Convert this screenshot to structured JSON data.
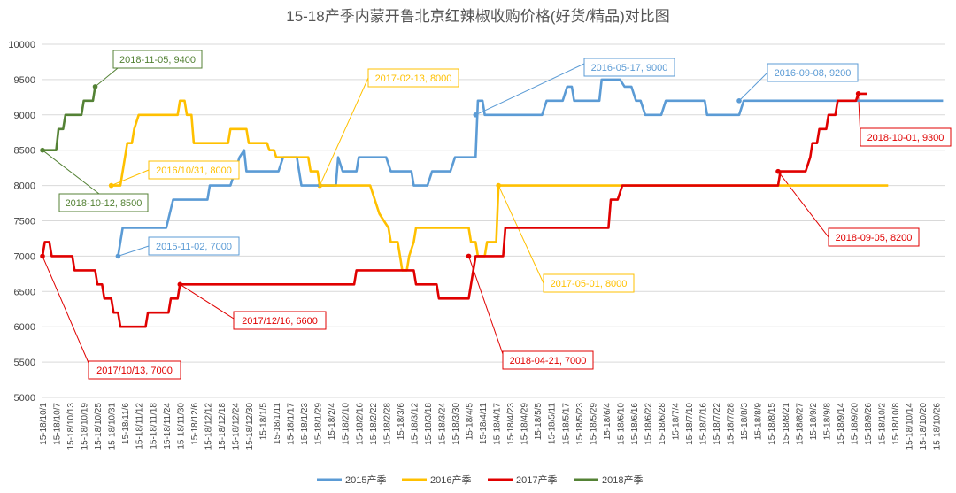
{
  "chart_data": {
    "type": "line",
    "title": "15-18产季内蒙开鲁北京红辣椒收购价格(好货/精品)对比图",
    "ylim": [
      5000,
      10000
    ],
    "yticks": [
      "5000",
      "5500",
      "6000",
      "6500",
      "7000",
      "7500",
      "8000",
      "8500",
      "9000",
      "9500",
      "10000"
    ],
    "xlabels": [
      "15-18/10/1",
      "15-18/10/7",
      "15-18/10/13",
      "15-18/10/19",
      "15-18/10/25",
      "15-18/10/31",
      "15-18/11/6",
      "15-18/11/12",
      "15-18/11/18",
      "15-18/11/24",
      "15-18/11/30",
      "15-18/12/6",
      "15-18/12/12",
      "15-18/12/18",
      "15-18/12/24",
      "15-18/12/30",
      "15-18/1/5",
      "15-18/1/11",
      "15-18/1/17",
      "15-18/1/23",
      "15-18/1/29",
      "15-18/2/4",
      "15-18/2/10",
      "15-18/2/16",
      "15-18/2/22",
      "15-18/2/28",
      "15-18/3/6",
      "15-18/3/12",
      "15-18/3/18",
      "15-18/3/24",
      "15-18/3/30",
      "15-18/4/5",
      "15-18/4/11",
      "15-18/4/17",
      "15-18/4/23",
      "15-18/4/29",
      "15-18/5/5",
      "15-18/5/11",
      "15-18/5/17",
      "15-18/5/23",
      "15-18/5/29",
      "15-18/6/4",
      "15-18/6/10",
      "15-18/6/16",
      "15-18/6/22",
      "15-18/6/28",
      "15-18/7/4",
      "15-18/7/10",
      "15-18/7/16",
      "15-18/7/22",
      "15-18/7/28",
      "15-18/8/3",
      "15-18/8/9",
      "15-18/8/15",
      "15-18/8/21",
      "15-18/8/27",
      "15-18/9/2",
      "15-18/9/8",
      "15-18/9/14",
      "15-18/9/20",
      "15-18/9/26",
      "15-18/10/2",
      "15-18/10/8",
      "15-18/10/14",
      "15-18/10/20",
      "15-18/10/26"
    ],
    "series": [
      {
        "name": "2015产季",
        "color": "#5B9BD5",
        "points": [
          [
            33,
            7000
          ],
          [
            34,
            7200
          ],
          [
            35,
            7400
          ],
          [
            54,
            7400
          ],
          [
            57,
            7800
          ],
          [
            72,
            7800
          ],
          [
            73,
            8000
          ],
          [
            82,
            8000
          ],
          [
            84,
            8200
          ],
          [
            86,
            8400
          ],
          [
            88,
            8500
          ],
          [
            89,
            8200
          ],
          [
            103,
            8200
          ],
          [
            105,
            8400
          ],
          [
            111,
            8400
          ],
          [
            113,
            8000
          ],
          [
            128,
            8000
          ],
          [
            129,
            8400
          ],
          [
            131,
            8200
          ],
          [
            137,
            8200
          ],
          [
            138,
            8400
          ],
          [
            150,
            8400
          ],
          [
            152,
            8200
          ],
          [
            161,
            8200
          ],
          [
            162,
            8000
          ],
          [
            168,
            8000
          ],
          [
            170,
            8200
          ],
          [
            178,
            8200
          ],
          [
            180,
            8400
          ],
          [
            189,
            8400
          ],
          [
            190,
            9200
          ],
          [
            192,
            9200
          ],
          [
            193,
            9000
          ],
          [
            218,
            9000
          ],
          [
            220,
            9200
          ],
          [
            227,
            9200
          ],
          [
            229,
            9400
          ],
          [
            231,
            9400
          ],
          [
            232,
            9200
          ],
          [
            243,
            9200
          ],
          [
            244,
            9500
          ],
          [
            252,
            9500
          ],
          [
            254,
            9400
          ],
          [
            257,
            9400
          ],
          [
            259,
            9200
          ],
          [
            261,
            9200
          ],
          [
            263,
            9000
          ],
          [
            270,
            9000
          ],
          [
            272,
            9200
          ],
          [
            289,
            9200
          ],
          [
            290,
            9000
          ],
          [
            304,
            9000
          ],
          [
            306,
            9200
          ],
          [
            393,
            9200
          ]
        ]
      },
      {
        "name": "2016产季",
        "color": "#FFC000",
        "points": [
          [
            30,
            8000
          ],
          [
            34,
            8000
          ],
          [
            36,
            8400
          ],
          [
            37,
            8600
          ],
          [
            39,
            8600
          ],
          [
            40,
            8800
          ],
          [
            42,
            9000
          ],
          [
            59,
            9000
          ],
          [
            60,
            9200
          ],
          [
            62,
            9200
          ],
          [
            63,
            9000
          ],
          [
            65,
            9000
          ],
          [
            66,
            8600
          ],
          [
            81,
            8600
          ],
          [
            82,
            8800
          ],
          [
            89,
            8800
          ],
          [
            90,
            8600
          ],
          [
            98,
            8600
          ],
          [
            99,
            8500
          ],
          [
            101,
            8500
          ],
          [
            102,
            8400
          ],
          [
            116,
            8400
          ],
          [
            117,
            8200
          ],
          [
            120,
            8200
          ],
          [
            121,
            8000
          ],
          [
            143,
            8000
          ],
          [
            145,
            7800
          ],
          [
            147,
            7600
          ],
          [
            149,
            7500
          ],
          [
            151,
            7400
          ],
          [
            152,
            7200
          ],
          [
            155,
            7200
          ],
          [
            156,
            7000
          ],
          [
            157,
            6800
          ],
          [
            159,
            6800
          ],
          [
            160,
            7000
          ],
          [
            162,
            7200
          ],
          [
            163,
            7400
          ],
          [
            186,
            7400
          ],
          [
            187,
            7200
          ],
          [
            189,
            7200
          ],
          [
            190,
            7000
          ],
          [
            193,
            7000
          ],
          [
            194,
            7200
          ],
          [
            198,
            7200
          ],
          [
            199,
            8000
          ],
          [
            369,
            8000
          ]
        ]
      },
      {
        "name": "2017产季",
        "color": "#E00000",
        "points": [
          [
            0,
            7000
          ],
          [
            1,
            7200
          ],
          [
            3,
            7200
          ],
          [
            4,
            7000
          ],
          [
            13,
            7000
          ],
          [
            14,
            6800
          ],
          [
            23,
            6800
          ],
          [
            24,
            6600
          ],
          [
            26,
            6600
          ],
          [
            27,
            6400
          ],
          [
            30,
            6400
          ],
          [
            31,
            6200
          ],
          [
            33,
            6200
          ],
          [
            34,
            6000
          ],
          [
            45,
            6000
          ],
          [
            46,
            6200
          ],
          [
            55,
            6200
          ],
          [
            56,
            6400
          ],
          [
            59,
            6400
          ],
          [
            60,
            6600
          ],
          [
            136,
            6600
          ],
          [
            137,
            6800
          ],
          [
            162,
            6800
          ],
          [
            163,
            6600
          ],
          [
            172,
            6600
          ],
          [
            173,
            6400
          ],
          [
            186,
            6400
          ],
          [
            189,
            7000
          ],
          [
            201,
            7000
          ],
          [
            202,
            7400
          ],
          [
            247,
            7400
          ],
          [
            248,
            7800
          ],
          [
            251,
            7800
          ],
          [
            253,
            8000
          ],
          [
            321,
            8000
          ],
          [
            322,
            8200
          ],
          [
            333,
            8200
          ],
          [
            335,
            8400
          ],
          [
            336,
            8600
          ],
          [
            338,
            8600
          ],
          [
            339,
            8800
          ],
          [
            342,
            8800
          ],
          [
            343,
            9000
          ],
          [
            346,
            9000
          ],
          [
            347,
            9200
          ],
          [
            355,
            9200
          ],
          [
            356,
            9300
          ],
          [
            360,
            9300
          ]
        ]
      },
      {
        "name": "2018产季",
        "color": "#548235",
        "points": [
          [
            0,
            8500
          ],
          [
            6,
            8500
          ],
          [
            7,
            8800
          ],
          [
            9,
            8800
          ],
          [
            10,
            9000
          ],
          [
            17,
            9000
          ],
          [
            18,
            9200
          ],
          [
            22,
            9200
          ],
          [
            23,
            9400
          ]
        ]
      }
    ],
    "annotations": [
      {
        "text": "2018-11-05, 9400",
        "series": "2018产季",
        "color": "#548235"
      },
      {
        "text": "2018-10-12, 8500",
        "series": "2018产季",
        "color": "#548235"
      },
      {
        "text": "2016/10/31, 8000",
        "series": "2016产季",
        "color": "#FFC000"
      },
      {
        "text": "2015-11-02, 7000",
        "series": "2015产季",
        "color": "#5B9BD5"
      },
      {
        "text": "2017-02-13, 8000",
        "series": "2016产季",
        "color": "#FFC000"
      },
      {
        "text": "2016-05-17, 9000",
        "series": "2015产季",
        "color": "#5B9BD5"
      },
      {
        "text": "2016-09-08, 9200",
        "series": "2015产季",
        "color": "#5B9BD5"
      },
      {
        "text": "2018-10-01, 9300",
        "series": "2017产季",
        "color": "#E00000"
      },
      {
        "text": "2018-09-05, 8200",
        "series": "2017产季",
        "color": "#E00000"
      },
      {
        "text": "2017-05-01, 8000",
        "series": "2016产季",
        "color": "#FFC000"
      },
      {
        "text": "2017/12/16, 6600",
        "series": "2017产季",
        "color": "#E00000"
      },
      {
        "text": "2018-04-21, 7000",
        "series": "2017产季",
        "color": "#E00000"
      },
      {
        "text": "2017/10/13, 7000",
        "series": "2017产季",
        "color": "#E00000"
      }
    ],
    "legend_position": "bottom",
    "grid": "horizontal"
  }
}
